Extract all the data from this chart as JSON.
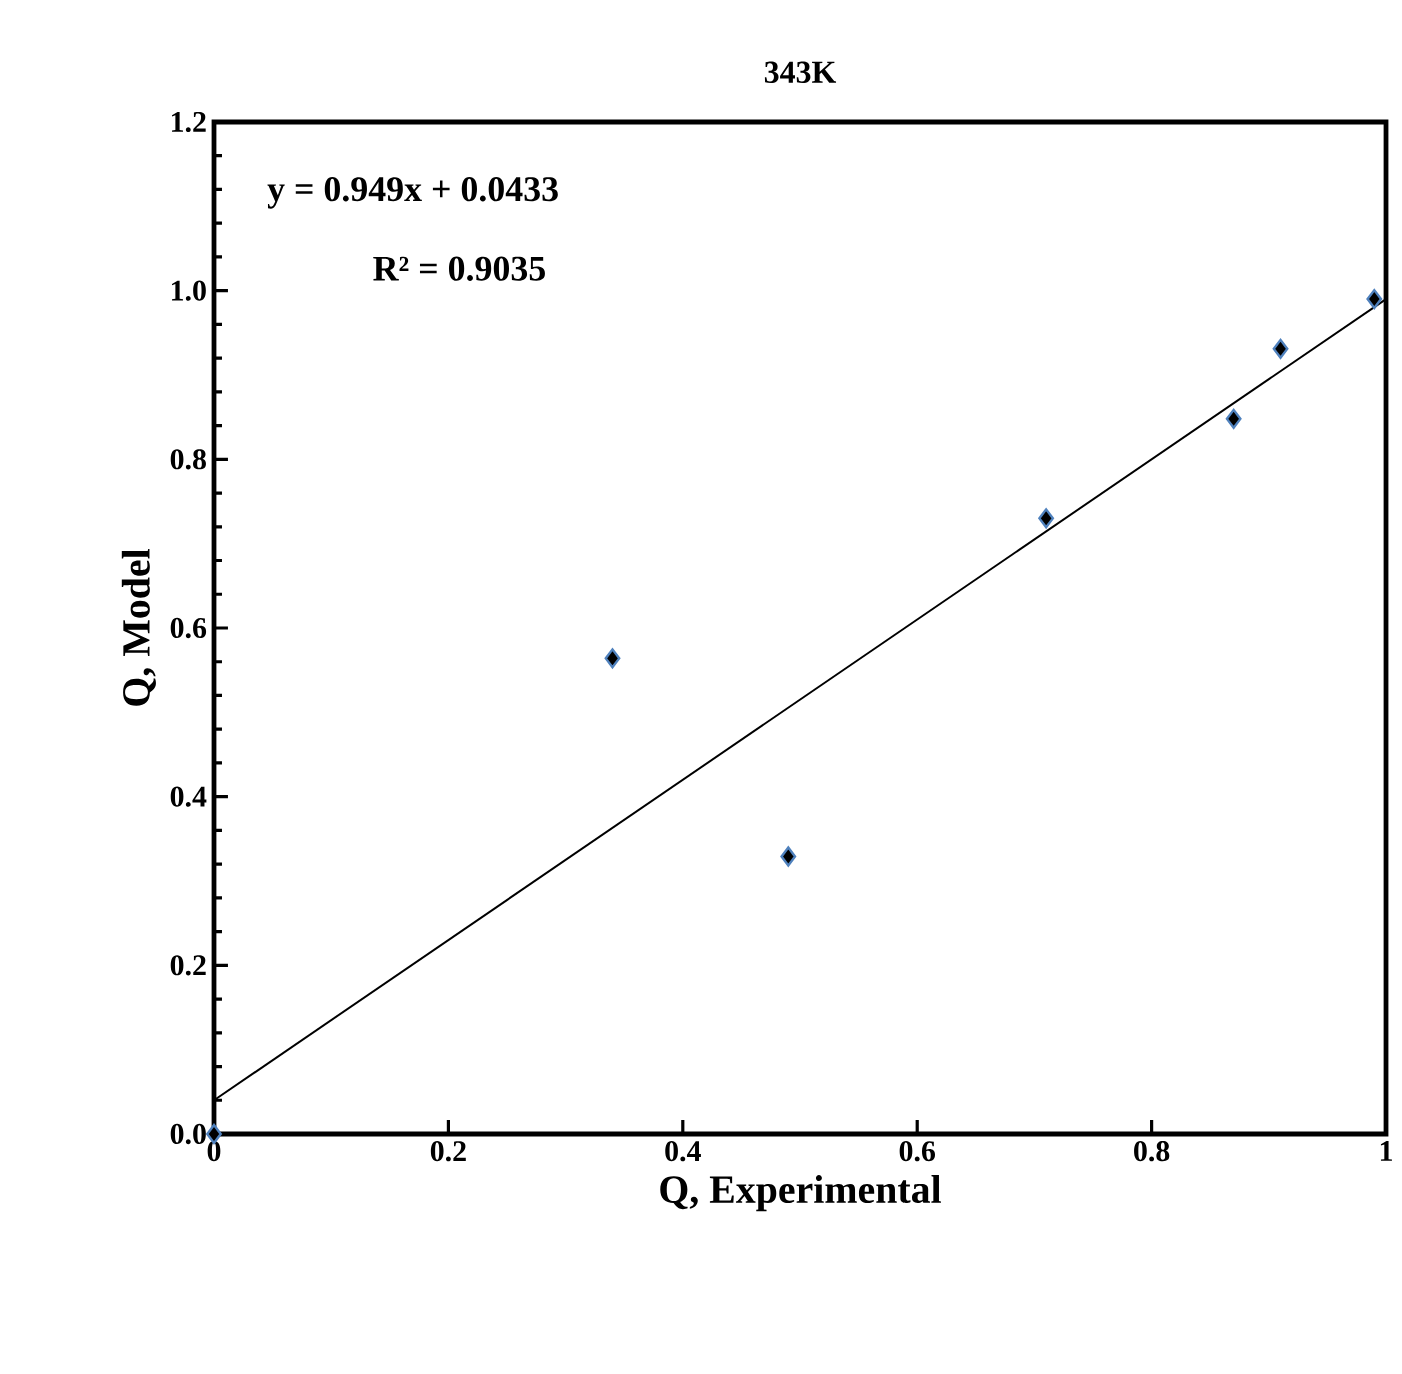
{
  "chart_data": {
    "type": "scatter",
    "title": "343K",
    "xlabel": "Q, Experimental",
    "ylabel": "Q, Model",
    "x": [
      0,
      0.34,
      0.49,
      0.71,
      0.87,
      0.91,
      0.99
    ],
    "series": [
      {
        "color": "#000000",
        "marker": "diamond",
        "values": [
          0,
          0.564,
          0.329,
          0.73,
          0.848,
          0.931,
          0.99
        ]
      },
      {
        "type": "line",
        "color": "#000000",
        "marker": "none",
        "line_style": "solid",
        "x": [
          0,
          1
        ],
        "values": [
          0.04,
          0.99
        ]
      }
    ],
    "annotations": [
      "y = 0.949x + 0.0433",
      "R² = 0.9035"
    ],
    "xlim": [
      0,
      1
    ],
    "ylim": [
      0,
      1.2
    ],
    "xticks": [
      0,
      {
        "value": 0.2,
        "label": "0.2"
      },
      {
        "value": 0.4,
        "label": "0.4"
      },
      {
        "value": 0.6,
        "label": "0.6"
      },
      {
        "value": 0.8,
        "label": "0.8"
      },
      1
    ],
    "yticks": [
      {
        "value": 0,
        "label": "0.0"
      },
      {
        "value": 0.2,
        "label": "0.2"
      },
      {
        "value": 0.4,
        "label": "0.4"
      },
      {
        "value": 0.6,
        "label": "0.6"
      },
      {
        "value": 0.8,
        "label": "0.8"
      },
      {
        "value": 1,
        "label": "1.0"
      },
      {
        "value": 1.2,
        "label": "1.2"
      }
    ],
    "grid": false
  }
}
